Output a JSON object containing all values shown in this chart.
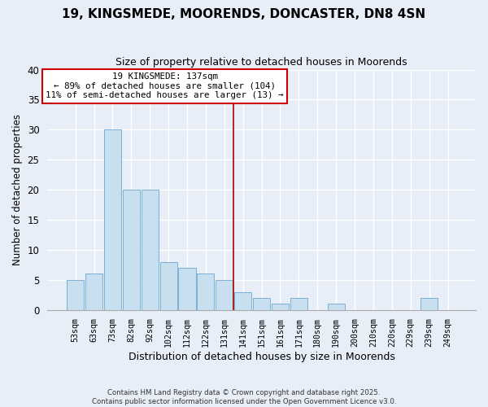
{
  "title": "19, KINGSMEDE, MOORENDS, DONCASTER, DN8 4SN",
  "subtitle": "Size of property relative to detached houses in Moorends",
  "bar_labels": [
    "53sqm",
    "63sqm",
    "73sqm",
    "82sqm",
    "92sqm",
    "102sqm",
    "112sqm",
    "122sqm",
    "131sqm",
    "141sqm",
    "151sqm",
    "161sqm",
    "171sqm",
    "180sqm",
    "190sqm",
    "200sqm",
    "210sqm",
    "220sqm",
    "229sqm",
    "239sqm",
    "249sqm"
  ],
  "bar_values": [
    5,
    6,
    30,
    20,
    20,
    8,
    7,
    6,
    5,
    3,
    2,
    1,
    2,
    0,
    1,
    0,
    0,
    0,
    0,
    2,
    0
  ],
  "bar_color": "#c8dff0",
  "bar_edge_color": "#7ab0d4",
  "ylabel": "Number of detached properties",
  "xlabel": "Distribution of detached houses by size in Moorends",
  "ylim": [
    0,
    40
  ],
  "yticks": [
    0,
    5,
    10,
    15,
    20,
    25,
    30,
    35,
    40
  ],
  "vline_x_index": 8,
  "vline_color": "#aa0000",
  "annotation_title": "19 KINGSMEDE: 137sqm",
  "annotation_line1": "← 89% of detached houses are smaller (104)",
  "annotation_line2": "11% of semi-detached houses are larger (13) →",
  "annotation_box_color": "#ffffff",
  "annotation_box_edge": "#cc0000",
  "footer_line1": "Contains HM Land Registry data © Crown copyright and database right 2025.",
  "footer_line2": "Contains public sector information licensed under the Open Government Licence v3.0.",
  "background_color": "#e8eef8",
  "grid_color": "#ffffff",
  "plot_bg_color": "#e8eef8"
}
